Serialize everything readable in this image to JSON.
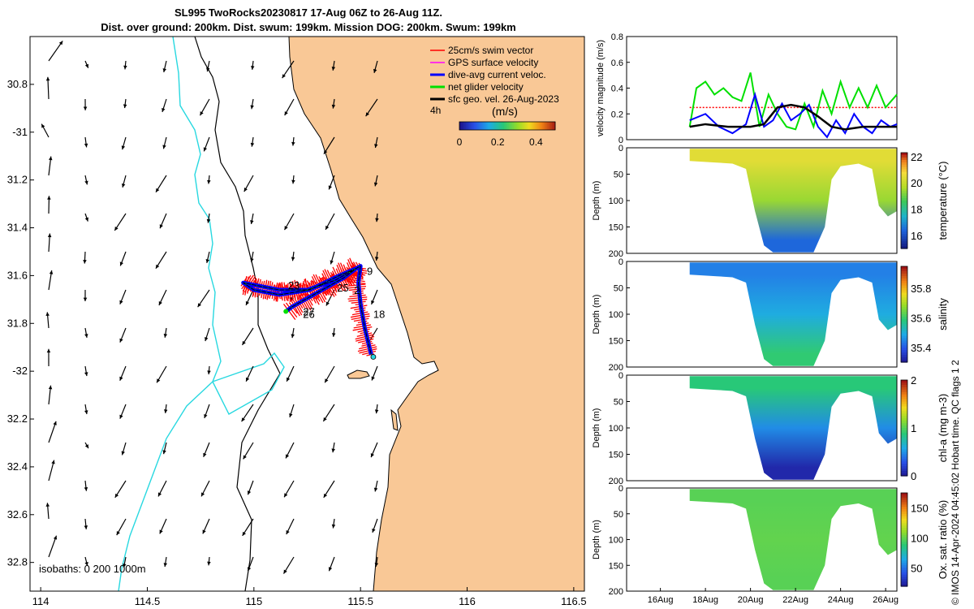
{
  "title": {
    "line1": "SL995 TwoRocks20230817 17-Aug 06Z to 26-Aug 11Z.",
    "line2": "Dist. over ground: 200km. Dist. swum: 199km. Mission DOG: 200km. Swum: 199km"
  },
  "credit": "© IMOS 14-Apr-2024 04:45:02 Hobart time. QC flags 1  2",
  "colors": {
    "land": "#f9c896",
    "ocean": "#ffffff",
    "isobath_shallow": "#28d8e0",
    "isobath_deep": "#000000",
    "swim": "#ff0000",
    "gps": "#ff00ff",
    "dive_avg": "#0000ff",
    "net": "#00e000",
    "sfc_geo": "#000000"
  },
  "chart_data": [
    {
      "type": "map",
      "name": "glider track map",
      "xlim": [
        113.95,
        116.55
      ],
      "ylim": [
        -32.92,
        -30.6
      ],
      "x_ticks": [
        114,
        114.5,
        115,
        115.5,
        116,
        116.5
      ],
      "x_tick_labels": [
        "114",
        "114.5",
        "115",
        "115.5",
        "116",
        "116.5"
      ],
      "y_ticks": [
        -30.8,
        -31,
        -31.2,
        -31.4,
        -31.6,
        -31.8,
        -32,
        -32.2,
        -32.4,
        -32.6,
        -32.8
      ],
      "y_tick_labels": [
        "30.8",
        "-31",
        "31.2",
        "31.4",
        "31.6",
        "31.8",
        "-32",
        "32.2",
        "32.4",
        "32.6",
        "32.8"
      ],
      "isobaths_label": "isobaths: 0   200  1000m",
      "legend": [
        {
          "label": "25cm/s swim vector",
          "color": "#ff0000"
        },
        {
          "label": "GPS surface velocity",
          "color": "#ff00ff"
        },
        {
          "label": "dive-avg current veloc.",
          "color": "#0000ff"
        },
        {
          "label": "net glider velocity",
          "color": "#00e000"
        },
        {
          "label": "sfc geo. vel. 26-Aug-2023",
          "color": "#000000"
        }
      ],
      "legend_placement": "top-right",
      "colorbar": {
        "title": "(m/s)",
        "label_left": "4h",
        "range": [
          0,
          0.5
        ],
        "ticks": [
          0,
          0.2,
          0.4
        ],
        "tick_labels": [
          "0",
          "0.2",
          "0.4"
        ]
      },
      "track": [
        {
          "lon": 115.55,
          "lat": -31.93
        },
        {
          "lon": 115.52,
          "lat": -31.82
        },
        {
          "lon": 115.5,
          "lat": -31.72
        },
        {
          "lon": 115.49,
          "lat": -31.63
        },
        {
          "lon": 115.5,
          "lat": -31.56
        },
        {
          "lon": 115.38,
          "lat": -31.62
        },
        {
          "lon": 115.25,
          "lat": -31.66
        },
        {
          "lon": 115.12,
          "lat": -31.66
        },
        {
          "lon": 114.95,
          "lat": -31.63
        },
        {
          "lon": 115.0,
          "lat": -31.66
        },
        {
          "lon": 115.12,
          "lat": -31.68
        },
        {
          "lon": 115.26,
          "lat": -31.66
        },
        {
          "lon": 115.4,
          "lat": -31.6
        },
        {
          "lon": 115.48,
          "lat": -31.57
        },
        {
          "lon": 115.42,
          "lat": -31.61
        },
        {
          "lon": 115.28,
          "lat": -31.68
        },
        {
          "lon": 115.18,
          "lat": -31.73
        },
        {
          "lon": 115.15,
          "lat": -31.75
        }
      ],
      "day_labels": [
        {
          "text": "9",
          "lon": 115.53,
          "lat": -31.58
        },
        {
          "text": "18",
          "lon": 115.56,
          "lat": -31.76
        },
        {
          "text": "23",
          "lon": 115.16,
          "lat": -31.64
        },
        {
          "text": "25",
          "lon": 115.39,
          "lat": -31.65
        },
        {
          "text": "2",
          "lon": 115.47,
          "lat": -31.66
        },
        {
          "text": "27",
          "lon": 115.23,
          "lat": -31.75
        },
        {
          "text": "26",
          "lon": 115.23,
          "lat": -31.76
        }
      ],
      "towns": [
        {
          "lon": 115.56,
          "lat": -31.94
        }
      ]
    },
    {
      "type": "line",
      "name": "velocity magnitude",
      "ylabel": "velocity magnitude (m/s)",
      "ylim": [
        0,
        0.8
      ],
      "yticks": [
        0,
        0.2,
        0.4,
        0.6,
        0.8
      ],
      "xlim": [
        14.5,
        26.5
      ],
      "series": [
        {
          "name": "25cm/s swim vector",
          "color": "#ff0000",
          "style": "dotted",
          "x": [
            17.3,
            26.5
          ],
          "y": [
            0.25,
            0.25
          ]
        },
        {
          "name": "net glider velocity",
          "color": "#00e000",
          "x": [
            17.3,
            17.6,
            18,
            18.4,
            18.8,
            19.2,
            19.6,
            20,
            20.4,
            20.8,
            21.2,
            21.6,
            22,
            22.4,
            22.8,
            23.2,
            23.6,
            24,
            24.4,
            24.8,
            25.2,
            25.6,
            26,
            26.5
          ],
          "y": [
            0.1,
            0.4,
            0.45,
            0.35,
            0.4,
            0.33,
            0.3,
            0.52,
            0.1,
            0.35,
            0.2,
            0.1,
            0.08,
            0.28,
            0.1,
            0.38,
            0.2,
            0.45,
            0.25,
            0.4,
            0.25,
            0.42,
            0.25,
            0.35
          ]
        },
        {
          "name": "dive-avg current veloc.",
          "color": "#0000ff",
          "x": [
            17.3,
            18,
            18.6,
            19.2,
            19.8,
            20.2,
            20.6,
            21,
            21.4,
            21.8,
            22.2,
            22.6,
            23,
            23.4,
            23.8,
            24.2,
            24.6,
            25,
            25.4,
            25.8,
            26.2,
            26.5
          ],
          "y": [
            0.15,
            0.2,
            0.1,
            0.05,
            0.12,
            0.35,
            0.1,
            0.15,
            0.28,
            0.15,
            0.2,
            0.27,
            0.1,
            0.02,
            0.15,
            0.05,
            0.2,
            0.1,
            0.05,
            0.15,
            0.1,
            0.12
          ]
        },
        {
          "name": "sfc geo. vel.",
          "color": "#000000",
          "x": [
            17.3,
            18,
            19,
            20,
            20.6,
            21.2,
            21.8,
            22.4,
            23,
            23.6,
            24.2,
            25,
            25.8,
            26.5
          ],
          "y": [
            0.1,
            0.12,
            0.1,
            0.1,
            0.12,
            0.25,
            0.27,
            0.25,
            0.18,
            0.1,
            0.08,
            0.1,
            0.1,
            0.1
          ]
        }
      ]
    },
    {
      "type": "heatmap",
      "name": "temperature section",
      "ylabel": "Depth (m)",
      "ylim": [
        200,
        0
      ],
      "yticks": [
        0,
        50,
        100,
        150,
        200
      ],
      "colorbar_label": "temperature (°C)",
      "clim": [
        15,
        22.3
      ],
      "cticks": [
        16,
        18,
        20,
        22
      ],
      "fill_sample": [
        {
          "depth_m": 25,
          "value": 20.5
        },
        {
          "depth_m": 100,
          "value": 19.5
        },
        {
          "depth_m": 175,
          "value": 16.5
        }
      ]
    },
    {
      "type": "heatmap",
      "name": "salinity section",
      "ylabel": "Depth (m)",
      "ylim": [
        200,
        0
      ],
      "yticks": [
        0,
        50,
        100,
        150,
        200
      ],
      "colorbar_label": "salinity",
      "clim": [
        35.3,
        35.95
      ],
      "cticks": [
        35.4,
        35.6,
        35.8
      ],
      "fill_sample": [
        {
          "depth_m": 25,
          "value": 35.45
        },
        {
          "depth_m": 100,
          "value": 35.5
        },
        {
          "depth_m": 175,
          "value": 35.6
        }
      ]
    },
    {
      "type": "heatmap",
      "name": "chlorophyll section",
      "ylabel": "Depth (m)",
      "ylim": [
        200,
        0
      ],
      "yticks": [
        0,
        50,
        100,
        150,
        200
      ],
      "colorbar_label": "chl-a (mg m-3)",
      "clim": [
        0,
        2
      ],
      "cticks": [
        0,
        1,
        2
      ],
      "fill_sample": [
        {
          "depth_m": 25,
          "value": 0.9
        },
        {
          "depth_m": 100,
          "value": 0.5
        },
        {
          "depth_m": 175,
          "value": 0.1
        }
      ]
    },
    {
      "type": "heatmap",
      "name": "oxygen saturation section",
      "ylabel": "Depth (m)",
      "ylim": [
        200,
        0
      ],
      "yticks": [
        0,
        50,
        100,
        150,
        200
      ],
      "colorbar_label": "Ox. sat. ratio (%)",
      "clim": [
        20,
        175
      ],
      "cticks": [
        50,
        100,
        150
      ],
      "fill_sample": [
        {
          "depth_m": 25,
          "value": 100
        },
        {
          "depth_m": 100,
          "value": 102
        },
        {
          "depth_m": 175,
          "value": 100
        }
      ]
    }
  ],
  "time_axis": {
    "xlim": [
      14.5,
      26.5
    ],
    "ticks": [
      16,
      18,
      20,
      22,
      24,
      26
    ],
    "tick_labels": [
      "16Aug",
      "18Aug",
      "20Aug",
      "22Aug",
      "24Aug",
      "26Aug"
    ]
  }
}
